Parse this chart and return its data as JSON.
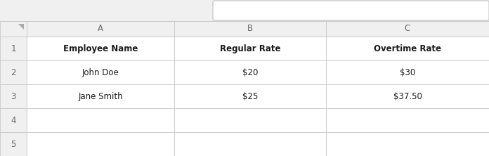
{
  "col_headers": [
    "A",
    "B",
    "C"
  ],
  "row_numbers": [
    "1",
    "2",
    "3",
    "4",
    "5"
  ],
  "headers": [
    "Employee Name",
    "Regular Rate",
    "Overtime Rate"
  ],
  "rows": [
    [
      "John Doe",
      "$20",
      "$30"
    ],
    [
      "Jane Smith",
      "$25",
      "$37.50"
    ],
    [
      "",
      "",
      ""
    ],
    [
      "",
      "",
      ""
    ]
  ],
  "bg_color": "#f0f0f0",
  "cell_bg": "#ffffff",
  "header_bg": "#f0f0f0",
  "grid_color": "#c8c8c8",
  "text_color": "#1a1a1a",
  "row_num_color": "#666666",
  "col_label_color": "#666666",
  "data_font_size": 8.5,
  "row_num_font_size": 8.5,
  "col_label_font_size": 8.5,
  "formula_bar_color": "#ffffff",
  "formula_bar_border": "#c0c0c0"
}
